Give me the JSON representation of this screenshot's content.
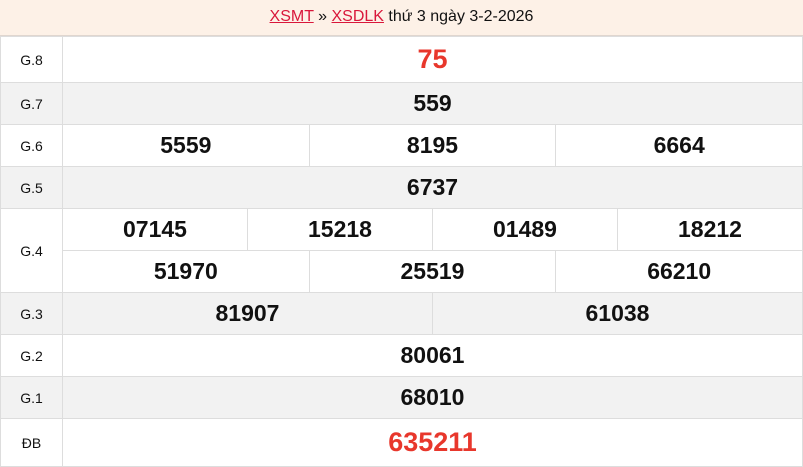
{
  "header": {
    "link1": "XSMT",
    "sep": " » ",
    "link2": "XSDLK",
    "text": " thứ 3 ngày 3-2-2026"
  },
  "colors": {
    "accent": "#e8372c",
    "link": "#d9173b",
    "header_bg": "#fdf1e7"
  },
  "prizes": [
    {
      "label": "G.8",
      "numbers": [
        "75"
      ]
    },
    {
      "label": "G.7",
      "numbers": [
        "559"
      ]
    },
    {
      "label": "G.6",
      "numbers": [
        "5559",
        "8195",
        "6664"
      ]
    },
    {
      "label": "G.5",
      "numbers": [
        "6737"
      ]
    },
    {
      "label": "G.4",
      "numbers": [
        "07145",
        "15218",
        "01489",
        "18212",
        "51970",
        "25519",
        "66210"
      ]
    },
    {
      "label": "G.3",
      "numbers": [
        "81907",
        "61038"
      ]
    },
    {
      "label": "G.2",
      "numbers": [
        "80061"
      ]
    },
    {
      "label": "G.1",
      "numbers": [
        "68010"
      ]
    },
    {
      "label": "ĐB",
      "numbers": [
        "635211"
      ]
    }
  ]
}
